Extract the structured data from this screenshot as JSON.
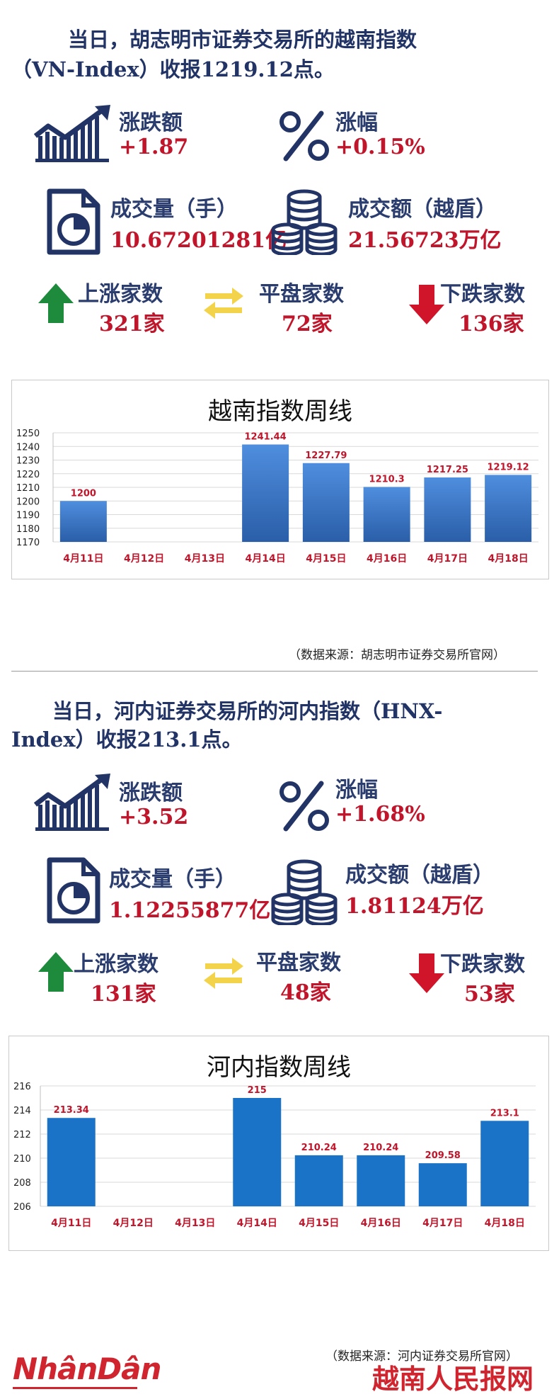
{
  "vn": {
    "headline_line1": "当日，胡志明市证券交易所的越南指数",
    "headline_line2": "（VN-Index）收报1219.12点。",
    "change_label": "涨跌额",
    "change_value": "+1.87",
    "pct_label": "涨幅",
    "pct_value": "+0.15%",
    "volume_label": "成交量（手）",
    "volume_value": "10.67201281亿",
    "turnover_label": "成交额（越盾）",
    "turnover_value": "21.56723万亿",
    "up_label": "上涨家数",
    "up_value": "321家",
    "flat_label": "平盘家数",
    "flat_value": "72家",
    "down_label": "下跌家数",
    "down_value": "136家",
    "source": "（数据来源：胡志明市证券交易所官网）"
  },
  "hnx": {
    "headline_line1": "当日，河内证券交易所的河内指数（HNX-",
    "headline_line2": "Index）收报213.1点。",
    "change_label": "涨跌额",
    "change_value": "+3.52",
    "pct_label": "涨幅",
    "pct_value": "+1.68%",
    "volume_label": "成交量（手）",
    "volume_value": "1.12255877亿",
    "turnover_label": "成交额（越盾）",
    "turnover_value": "1.81124万亿",
    "up_label": "上涨家数",
    "up_value": "131家",
    "flat_label": "平盘家数",
    "flat_value": "48家",
    "down_label": "下跌家数",
    "down_value": "53家",
    "source": "（数据来源：河内证券交易所官网）"
  },
  "footer": {
    "logo_text": "NhânDân",
    "brand_cn": "越南人民报网"
  },
  "colors": {
    "navy": "#223366",
    "red": "#c0152a",
    "up_green": "#1e8a3c",
    "flat_yellow": "#f3d34a",
    "down_red": "#d0152a",
    "bar_vn": "#3a78c8",
    "bar_hnx": "#1a73c6"
  },
  "chart_data": [
    {
      "type": "bar",
      "title": "越南指数周线",
      "categories": [
        "4月11日",
        "4月12日",
        "4月13日",
        "4月14日",
        "4月15日",
        "4月16日",
        "4月17日",
        "4月18日"
      ],
      "values": [
        1200,
        null,
        null,
        1241.44,
        1227.79,
        1210.3,
        1217.25,
        1219.12
      ],
      "value_labels": [
        "1200",
        "",
        "",
        "1241.44",
        "1227.79",
        "1210.3",
        "1217.25",
        "1219.12"
      ],
      "ylim": [
        1170,
        1250
      ],
      "yticks": [
        "1170",
        "1180",
        "1190",
        "1200",
        "1210",
        "1220",
        "1230",
        "1240",
        "1250"
      ],
      "grid": true,
      "xlabel": "",
      "ylabel": ""
    },
    {
      "type": "bar",
      "title": "河内指数周线",
      "categories": [
        "4月11日",
        "4月12日",
        "4月13日",
        "4月14日",
        "4月15日",
        "4月16日",
        "4月17日",
        "4月18日"
      ],
      "values": [
        213.34,
        null,
        null,
        215,
        210.24,
        210.24,
        209.58,
        213.1
      ],
      "value_labels": [
        "213.34",
        "",
        "",
        "215",
        "210.24",
        "210.24",
        "209.58",
        "213.1"
      ],
      "ylim": [
        206,
        216
      ],
      "yticks": [
        "206",
        "208",
        "210",
        "212",
        "214",
        "216"
      ],
      "grid": true,
      "xlabel": "",
      "ylabel": ""
    }
  ]
}
